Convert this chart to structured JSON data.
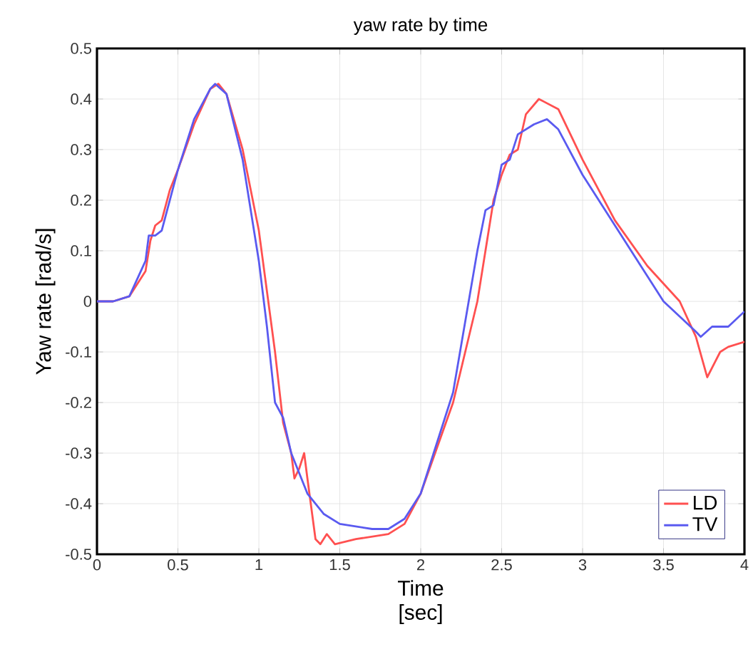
{
  "chart_data": {
    "type": "line",
    "title": "yaw rate by time",
    "xlabel": "Time\n[sec]",
    "ylabel": "Yaw rate [rad/s]",
    "xlim": [
      0,
      4
    ],
    "ylim": [
      -0.5,
      0.5
    ],
    "xticks": [
      0,
      0.5,
      1,
      1.5,
      2,
      2.5,
      3,
      3.5,
      4
    ],
    "yticks": [
      -0.5,
      -0.4,
      -0.3,
      -0.2,
      -0.1,
      0,
      0.1,
      0.2,
      0.3,
      0.4,
      0.5
    ],
    "grid": true,
    "legend": "bottom right",
    "series": [
      {
        "name": "LD",
        "color": "#ff5050",
        "x": [
          0,
          0.1,
          0.2,
          0.3,
          0.33,
          0.36,
          0.4,
          0.45,
          0.5,
          0.6,
          0.7,
          0.75,
          0.8,
          0.9,
          1.0,
          1.05,
          1.1,
          1.15,
          1.2,
          1.22,
          1.25,
          1.28,
          1.3,
          1.35,
          1.38,
          1.42,
          1.47,
          1.6,
          1.8,
          1.9,
          2.0,
          2.2,
          2.35,
          2.45,
          2.5,
          2.55,
          2.6,
          2.65,
          2.73,
          2.85,
          3.0,
          3.2,
          3.4,
          3.6,
          3.7,
          3.77,
          3.85,
          3.9,
          4.0
        ],
        "values": [
          0,
          0,
          0.01,
          0.06,
          0.12,
          0.15,
          0.16,
          0.22,
          0.26,
          0.35,
          0.42,
          0.43,
          0.41,
          0.3,
          0.14,
          0.02,
          -0.1,
          -0.24,
          -0.3,
          -0.35,
          -0.33,
          -0.3,
          -0.35,
          -0.47,
          -0.48,
          -0.46,
          -0.48,
          -0.47,
          -0.46,
          -0.44,
          -0.38,
          -0.2,
          0,
          0.2,
          0.25,
          0.29,
          0.3,
          0.37,
          0.4,
          0.38,
          0.28,
          0.16,
          0.07,
          0,
          -0.07,
          -0.15,
          -0.1,
          -0.09,
          -0.08
        ]
      },
      {
        "name": "TV",
        "color": "#5a5af0",
        "x": [
          0,
          0.1,
          0.2,
          0.3,
          0.32,
          0.36,
          0.4,
          0.45,
          0.5,
          0.6,
          0.7,
          0.73,
          0.8,
          0.9,
          1.0,
          1.05,
          1.1,
          1.15,
          1.2,
          1.3,
          1.4,
          1.5,
          1.7,
          1.8,
          1.9,
          2.0,
          2.2,
          2.35,
          2.4,
          2.45,
          2.5,
          2.55,
          2.6,
          2.7,
          2.78,
          2.85,
          3.0,
          3.2,
          3.4,
          3.5,
          3.6,
          3.7,
          3.73,
          3.8,
          3.9,
          4.0
        ],
        "values": [
          0,
          0,
          0.01,
          0.08,
          0.13,
          0.13,
          0.14,
          0.2,
          0.26,
          0.36,
          0.42,
          0.43,
          0.41,
          0.28,
          0.08,
          -0.05,
          -0.2,
          -0.23,
          -0.3,
          -0.38,
          -0.42,
          -0.44,
          -0.45,
          -0.45,
          -0.43,
          -0.38,
          -0.18,
          0.1,
          0.18,
          0.19,
          0.27,
          0.28,
          0.33,
          0.35,
          0.36,
          0.34,
          0.25,
          0.15,
          0.05,
          0,
          -0.03,
          -0.06,
          -0.07,
          -0.05,
          -0.05,
          -0.02
        ]
      }
    ]
  }
}
